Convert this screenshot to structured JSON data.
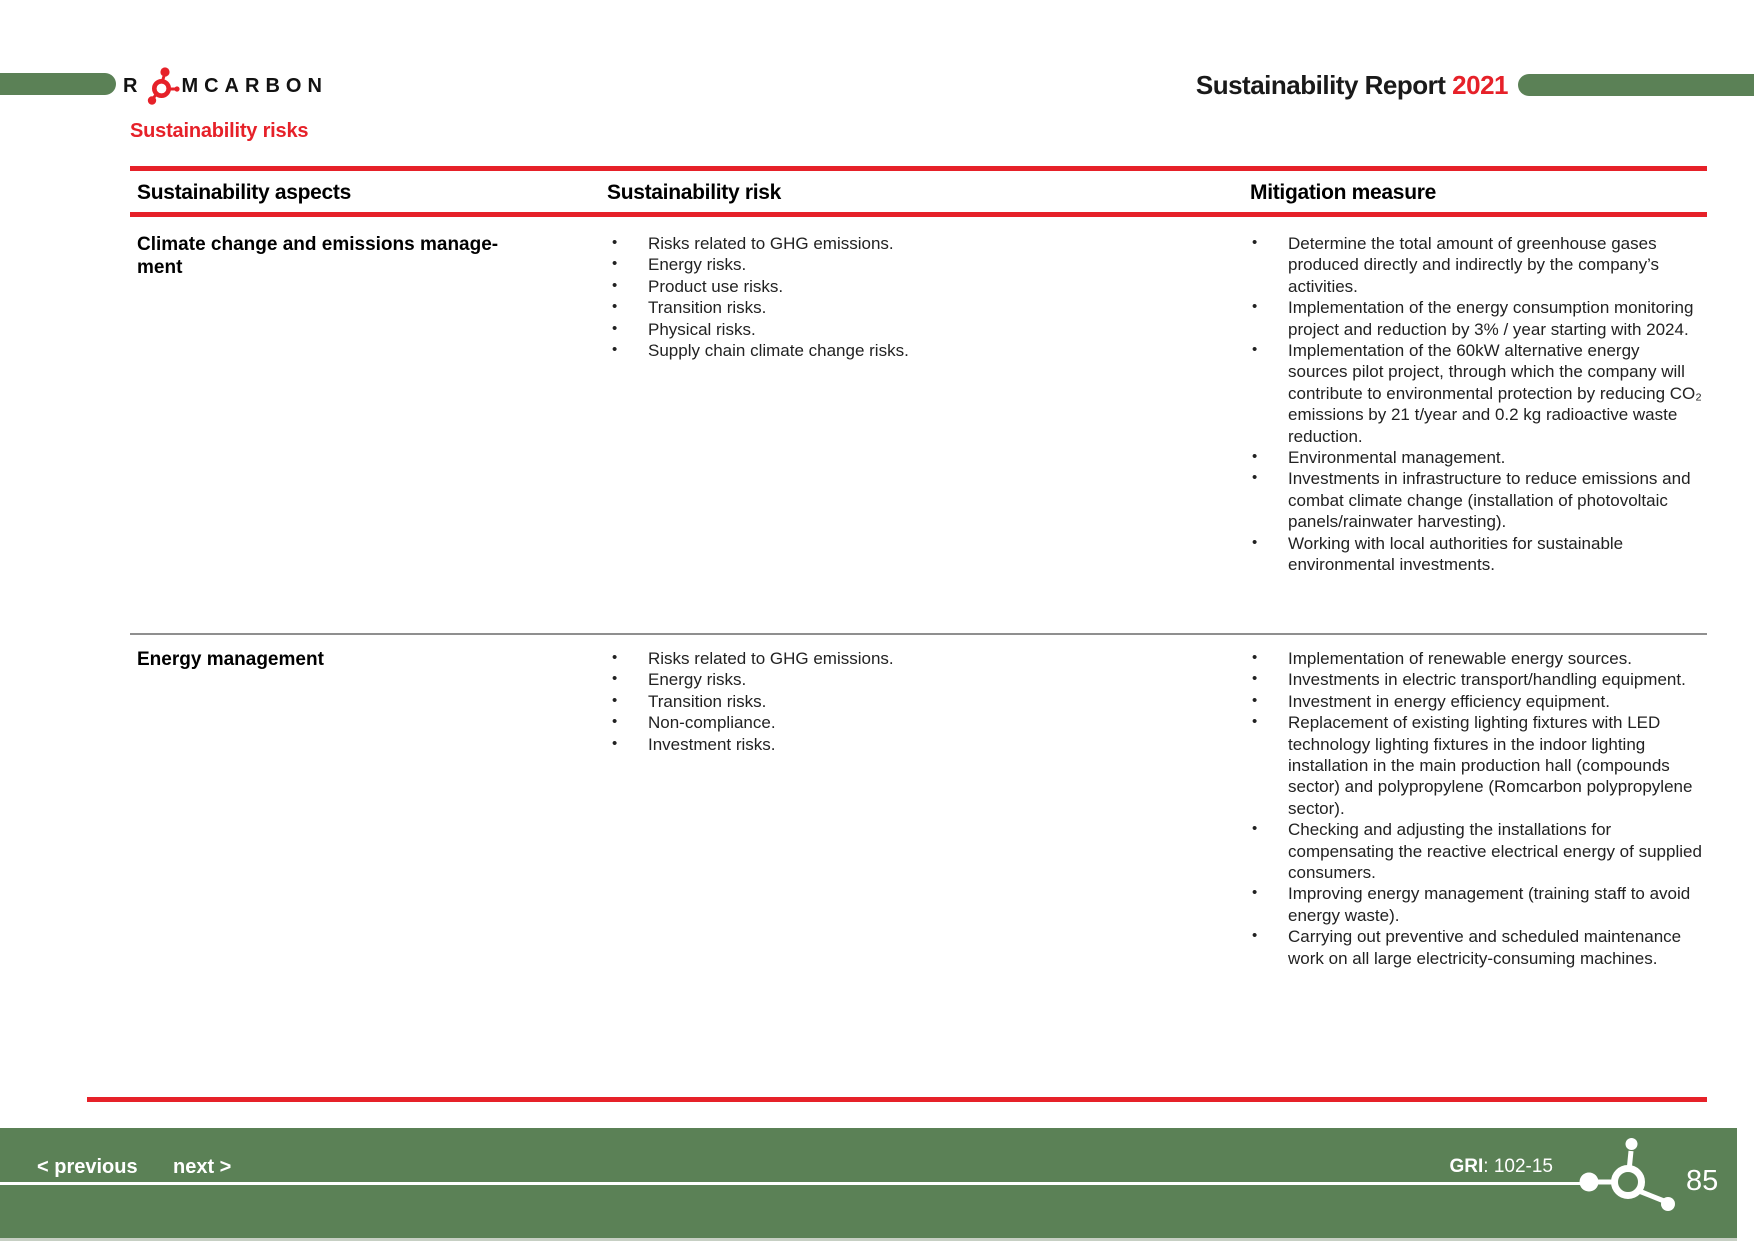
{
  "header": {
    "logo_prefix": "R",
    "logo_suffix": "MCARBON",
    "title": "Sustainability Report",
    "year": "2021"
  },
  "section_title": "Sustainability risks",
  "table": {
    "headers": {
      "aspects": "Sustainability aspects",
      "risk": "Sustainability risk",
      "measure": "Mitigation measure"
    },
    "rows": [
      {
        "aspect_lines": [
          "Climate change and emissions manage-",
          "ment"
        ],
        "risks": [
          "Risks related to GHG emissions.",
          "Energy risks.",
          "Product use risks.",
          "Transition risks.",
          "Physical risks.",
          "Supply chain climate change risks."
        ],
        "measures": [
          "Determine the total amount of greenhouse gases produced directly and indirectly by the company’s activities.",
          "Implementation of the energy consumption monitoring project and reduction by 3% / year starting with 2024.",
          "Implementation of the 60kW alternative energy sources pilot project, through which the company will contribute to environmental protection by reducing CO₂ emissions by 21 t/year and 0.2 kg radioactive waste reduction.",
          "Environmental management.",
          "Investments in infrastructure to reduce emissions and combat climate change (installation of photovoltaic panels/rainwater harvesting).",
          "Working with local authorities for sustainable environmental investments."
        ]
      },
      {
        "aspect_lines": [
          "Energy management"
        ],
        "risks": [
          "Risks related to GHG emissions.",
          "Energy risks.",
          "Transition risks.",
          "Non-compliance.",
          "Investment risks."
        ],
        "measures": [
          "Implementation of renewable energy sources.",
          "Investments in electric transport/handling equipment.",
          "Investment in energy efficiency equipment.",
          "Replacement of existing lighting fixtures with LED technology lighting fixtures in the indoor lighting installation in the main production hall (compounds sector) and polypropylene (Romcarbon polypropylene sector).",
          "Checking and adjusting the installations for compensating the reactive electrical energy of supplied consumers.",
          "Improving energy management (training staff to avoid energy waste).",
          "Carrying out preventive and scheduled maintenance work on all large electricity-consuming machines."
        ]
      }
    ]
  },
  "footer": {
    "previous_label": "< previous",
    "next_label": "next >",
    "gri_label": "GRI",
    "gri_value": ": 102-15",
    "page_number": "85"
  },
  "colors": {
    "accent_red": "#e62129",
    "brand_green": "#5b8156"
  }
}
